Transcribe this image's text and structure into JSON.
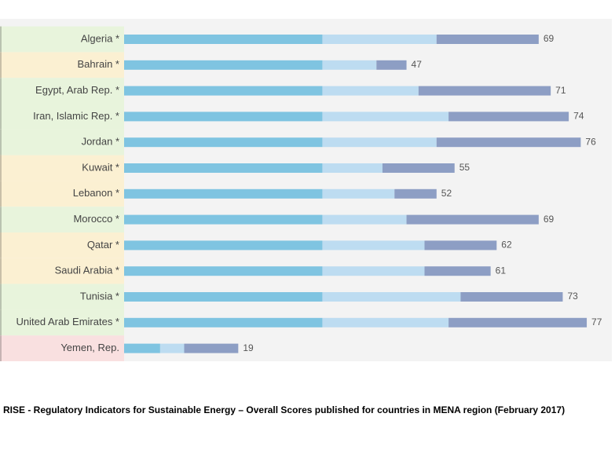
{
  "chart_data": {
    "type": "stacked-bar-horizontal",
    "caption": "RISE  - Regulatory Indicators for Sustainable Energy – Overall Scores published for countries in MENA region (February 2017)",
    "categories": [
      "Algeria *",
      "Bahrain *",
      "Egypt, Arab Rep. *",
      "Iran, Islamic Rep. *",
      "Jordan *",
      "Kuwait *",
      "Lebanon *",
      "Morocco *",
      "Qatar *",
      "Saudi Arabia *",
      "Tunisia *",
      "United Arab Emirates *",
      "Yemen, Rep."
    ],
    "band_colors": [
      "#e8f4dc",
      "#fbf0d2",
      "#e8f4dc",
      "#e8f4dc",
      "#e8f4dc",
      "#fbf0d2",
      "#fbf0d2",
      "#e8f4dc",
      "#fbf0d2",
      "#fbf0d2",
      "#e8f4dc",
      "#e8f4dc",
      "#f9e0e0"
    ],
    "series": [
      {
        "color": "#7fc4e1",
        "values": [
          33,
          33,
          33,
          33,
          33,
          33,
          33,
          33,
          33,
          33,
          33,
          33,
          6
        ]
      },
      {
        "color": "#bddcf1",
        "values": [
          19,
          9,
          16,
          21,
          19,
          10,
          12,
          14,
          17,
          17,
          23,
          21,
          4
        ]
      },
      {
        "color": "#8d9ec4",
        "values": [
          17,
          5,
          22,
          20,
          24,
          12,
          7,
          22,
          12,
          11,
          17,
          23,
          9
        ]
      }
    ],
    "totals": [
      69,
      47,
      71,
      74,
      76,
      55,
      52,
      69,
      62,
      61,
      73,
      77,
      19
    ],
    "xlim": [
      0,
      80
    ]
  }
}
